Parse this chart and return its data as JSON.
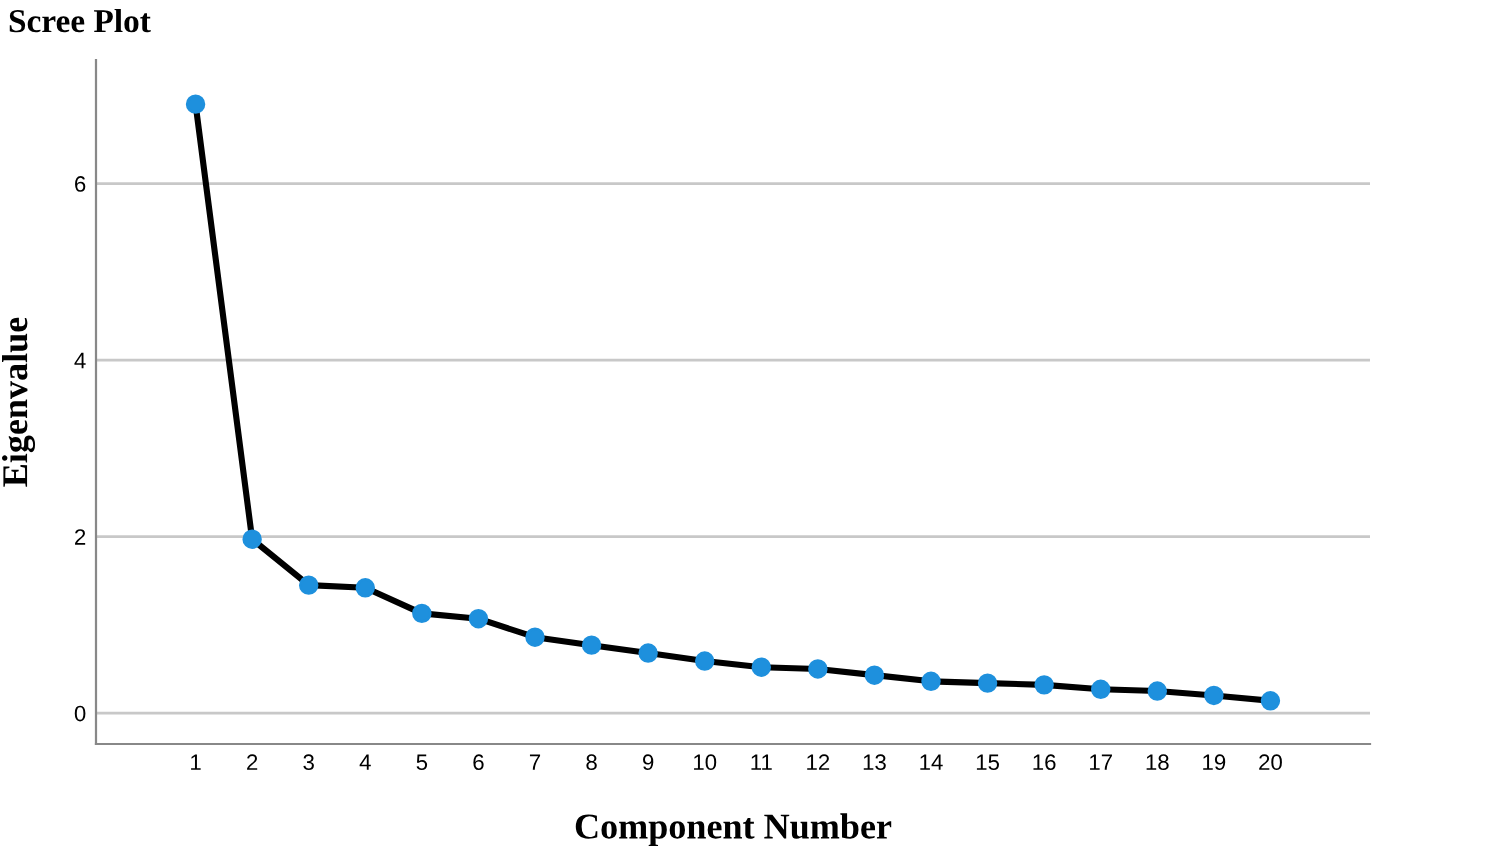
{
  "chart_data": {
    "type": "line",
    "title": "Scree Plot",
    "xlabel": "Component Number",
    "ylabel": "Eigenvalue",
    "categories": [
      "1",
      "2",
      "3",
      "4",
      "5",
      "6",
      "7",
      "8",
      "9",
      "10",
      "11",
      "12",
      "13",
      "14",
      "15",
      "16",
      "17",
      "18",
      "19",
      "20"
    ],
    "series": [
      {
        "color": "#000000",
        "colors": [
          "#1e90dd",
          "#1e90dd",
          "#1e90dd",
          "#1e90dd",
          "#1e90dd",
          "#1e90dd",
          "#1e90dd",
          "#1e90dd",
          "#1e90dd",
          "#1e90dd",
          "#1e90dd",
          "#1e90dd",
          "#1e90dd",
          "#1e90dd",
          "#1e90dd",
          "#1e90dd",
          "#1e90dd",
          "#1e90dd",
          "#1e90dd",
          "#1e90dd"
        ],
        "values": [
          6.9,
          1.97,
          1.45,
          1.42,
          1.13,
          1.07,
          0.86,
          0.77,
          0.68,
          0.59,
          0.52,
          0.5,
          0.43,
          0.36,
          0.34,
          0.32,
          0.27,
          0.25,
          0.2,
          0.14
        ]
      }
    ],
    "ylim": [
      -0.35,
      7.4
    ],
    "yticks": [
      0,
      2,
      4,
      6
    ],
    "grid": "y",
    "marker": "circle",
    "line_style": "solid",
    "legend": false
  }
}
